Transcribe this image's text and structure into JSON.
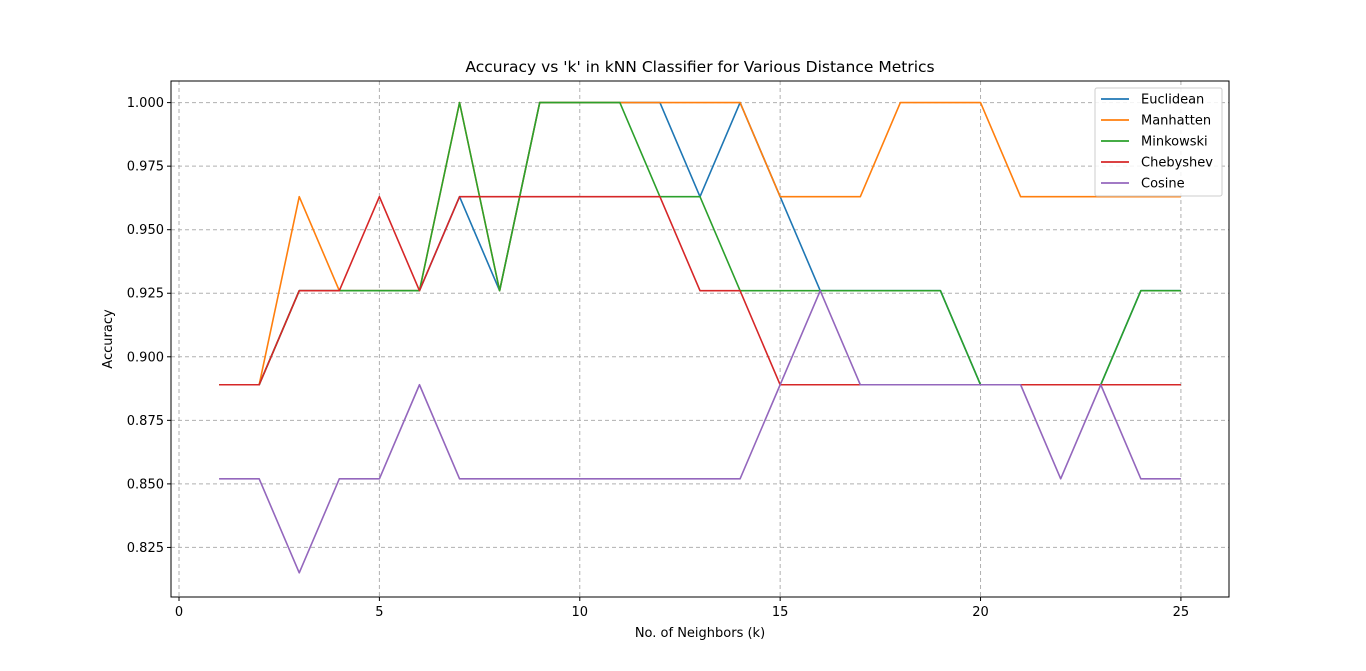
{
  "chart_data": {
    "type": "line",
    "title": "Accuracy vs 'k' in kNN Classifier for Various Distance Metrics",
    "xlabel": "No. of Neighbors (k)",
    "ylabel": "Accuracy",
    "xlim": [
      -0.2,
      26.2
    ],
    "ylim": [
      0.8055,
      1.0085
    ],
    "xticks": [
      0,
      5,
      10,
      15,
      20,
      25
    ],
    "xtick_labels": [
      "0",
      "5",
      "10",
      "15",
      "20",
      "25"
    ],
    "yticks": [
      0.825,
      0.85,
      0.875,
      0.9,
      0.925,
      0.95,
      0.975,
      1.0
    ],
    "ytick_labels": [
      "0.825",
      "0.850",
      "0.875",
      "0.900",
      "0.925",
      "0.950",
      "0.975",
      "1.000"
    ],
    "grid": true,
    "legend_position": "top-right",
    "x": [
      1,
      2,
      3,
      4,
      5,
      6,
      7,
      8,
      9,
      10,
      11,
      12,
      13,
      14,
      15,
      16,
      17,
      18,
      19,
      20,
      21,
      22,
      23,
      24,
      25
    ],
    "series": [
      {
        "name": "Euclidean",
        "color": "#1f77b4",
        "values": [
          0.889,
          0.889,
          0.926,
          0.926,
          0.926,
          0.926,
          0.963,
          0.926,
          1.0,
          1.0,
          1.0,
          1.0,
          0.963,
          1.0,
          0.963,
          0.926,
          0.926,
          0.926,
          0.926,
          0.889,
          0.889,
          0.889,
          0.889,
          0.926,
          0.926
        ]
      },
      {
        "name": "Manhatten",
        "color": "#ff7f0e",
        "values": [
          0.889,
          0.889,
          0.963,
          0.926,
          0.926,
          0.926,
          1.0,
          0.926,
          1.0,
          1.0,
          1.0,
          1.0,
          1.0,
          1.0,
          0.963,
          0.963,
          0.963,
          1.0,
          1.0,
          1.0,
          0.963,
          0.963,
          0.963,
          0.963,
          0.963
        ]
      },
      {
        "name": "Minkowski",
        "color": "#2ca02c",
        "values": [
          0.889,
          0.889,
          0.926,
          0.926,
          0.926,
          0.926,
          1.0,
          0.926,
          1.0,
          1.0,
          1.0,
          0.963,
          0.963,
          0.926,
          0.926,
          0.926,
          0.926,
          0.926,
          0.926,
          0.889,
          0.889,
          0.889,
          0.889,
          0.926,
          0.926
        ]
      },
      {
        "name": "Chebyshev",
        "color": "#d62728",
        "values": [
          0.889,
          0.889,
          0.926,
          0.926,
          0.963,
          0.926,
          0.963,
          0.963,
          0.963,
          0.963,
          0.963,
          0.963,
          0.926,
          0.926,
          0.889,
          0.889,
          0.889,
          0.889,
          0.889,
          0.889,
          0.889,
          0.889,
          0.889,
          0.889,
          0.889
        ]
      },
      {
        "name": "Cosine",
        "color": "#9467bd",
        "values": [
          0.852,
          0.852,
          0.815,
          0.852,
          0.852,
          0.889,
          0.852,
          0.852,
          0.852,
          0.852,
          0.852,
          0.852,
          0.852,
          0.852,
          0.889,
          0.926,
          0.889,
          0.889,
          0.889,
          0.889,
          0.889,
          0.852,
          0.889,
          0.852,
          0.852
        ]
      }
    ]
  }
}
